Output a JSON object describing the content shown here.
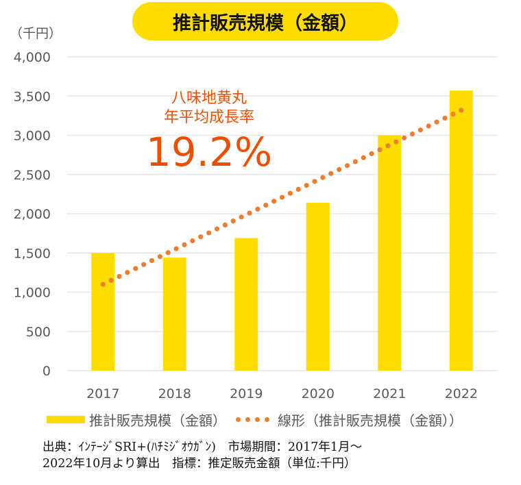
{
  "chart_data": {
    "type": "bar",
    "title": "推計販売規模（金額）",
    "ylabel": "（千円）",
    "xlabel": "",
    "categories": [
      "2017",
      "2018",
      "2019",
      "2020",
      "2021",
      "2022"
    ],
    "series": [
      {
        "name": "推計販売規模（金額）",
        "type": "bar",
        "color": "#ffdc00",
        "values": [
          1500,
          1440,
          1690,
          2140,
          3000,
          3570
        ]
      },
      {
        "name": "線形（推計販売規模（金額））",
        "type": "linear-trendline",
        "style": "dotted",
        "color": "#ed7d31",
        "start": 1100,
        "end": 3320
      }
    ],
    "ylim": [
      0,
      4000
    ],
    "yticks": [
      0,
      500,
      1000,
      1500,
      2000,
      2500,
      3000,
      3500,
      4000
    ],
    "ytick_labels": [
      "0",
      "500",
      "1,000",
      "1,500",
      "2,000",
      "2,500",
      "3,000",
      "3,500",
      "4,000"
    ],
    "grid": true,
    "legend_position": "bottom",
    "annotation": {
      "line1": "八味地黄丸",
      "line2": "年平均成長率",
      "value": "19.2%",
      "color": "#ea5004"
    }
  },
  "legend": {
    "bar_label": "推計販売規模（金額）",
    "trend_label": "線形（推計販売規模（金額））"
  },
  "source_note": {
    "line1": "出典：ｲﾝﾃｰｼﾞSRI+(ﾊﾁﾐｼﾞｵｳｶﾞﾝ)　市場期間：2017年1月～",
    "line2": "2022年10月より算出　指標：推定販売金額（単位:千円）"
  }
}
